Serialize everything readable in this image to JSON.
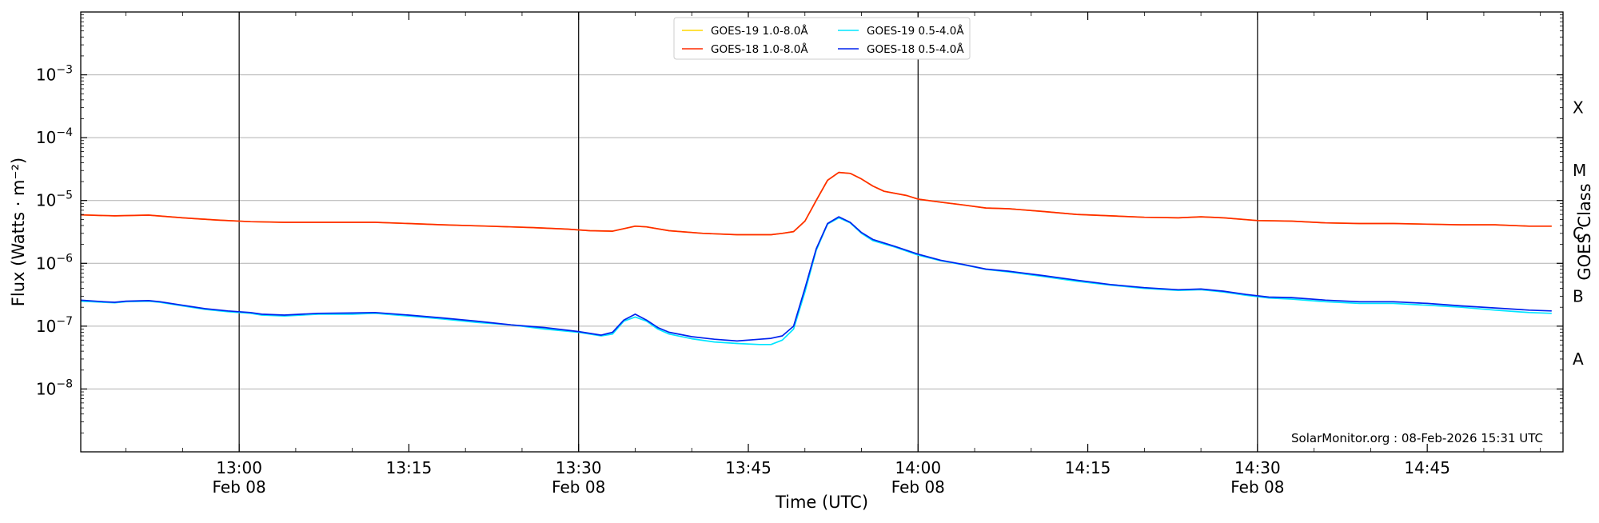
{
  "chart_data": {
    "type": "line",
    "title": "",
    "xlabel": "Time (UTC)",
    "ylabel": "Flux (Watts · m⁻²)",
    "right_label": "GOES Class",
    "yscale": "log",
    "ylim": [
      1e-09,
      0.01
    ],
    "xlim": [
      "12:46",
      "14:57"
    ],
    "grid": "horizontal at decades",
    "legend_position": "top-center",
    "y_ticks": [
      {
        "value": 1e-08,
        "base": "10",
        "exp": "−8"
      },
      {
        "value": 1e-07,
        "base": "10",
        "exp": "−7"
      },
      {
        "value": 1e-06,
        "base": "10",
        "exp": "−6"
      },
      {
        "value": 1e-05,
        "base": "10",
        "exp": "−5"
      },
      {
        "value": 0.0001,
        "base": "10",
        "exp": "−4"
      },
      {
        "value": 0.001,
        "base": "10",
        "exp": "−3"
      }
    ],
    "x_ticks": [
      {
        "time": "13:00",
        "label": "13:00",
        "date": "Feb 08"
      },
      {
        "time": "13:15",
        "label": "13:15",
        "date": ""
      },
      {
        "time": "13:30",
        "label": "13:30",
        "date": "Feb 08"
      },
      {
        "time": "13:45",
        "label": "13:45",
        "date": ""
      },
      {
        "time": "14:00",
        "label": "14:00",
        "date": "Feb 08"
      },
      {
        "time": "14:15",
        "label": "14:15",
        "date": ""
      },
      {
        "time": "14:30",
        "label": "14:30",
        "date": "Feb 08"
      },
      {
        "time": "14:45",
        "label": "14:45",
        "date": ""
      }
    ],
    "day_boundaries": [
      "13:00",
      "13:30",
      "14:00",
      "14:30"
    ],
    "goes_classes": [
      {
        "label": "A",
        "value": 3e-08
      },
      {
        "label": "B",
        "value": 3e-07
      },
      {
        "label": "C",
        "value": 3e-06
      },
      {
        "label": "M",
        "value": 3e-05
      },
      {
        "label": "X",
        "value": 0.0003
      }
    ],
    "series": [
      {
        "name": "GOES-19 1.0-8.0Å",
        "color": "#ffd700",
        "points": [
          [
            "12:46",
            5.9e-06
          ],
          [
            "12:49",
            5.7e-06
          ],
          [
            "12:52",
            5.85e-06
          ],
          [
            "12:55",
            5.3e-06
          ],
          [
            "12:58",
            4.9e-06
          ],
          [
            "13:01",
            4.6e-06
          ],
          [
            "13:04",
            4.5e-06
          ],
          [
            "13:08",
            4.5e-06
          ],
          [
            "13:12",
            4.5e-06
          ],
          [
            "13:15",
            4.3e-06
          ],
          [
            "13:18",
            4.1e-06
          ],
          [
            "13:22",
            3.9e-06
          ],
          [
            "13:26",
            3.7e-06
          ],
          [
            "13:29",
            3.5e-06
          ],
          [
            "13:31",
            3.3e-06
          ],
          [
            "13:33",
            3.25e-06
          ],
          [
            "13:35",
            3.9e-06
          ],
          [
            "13:36",
            3.8e-06
          ],
          [
            "13:38",
            3.3e-06
          ],
          [
            "13:41",
            3e-06
          ],
          [
            "13:44",
            2.85e-06
          ],
          [
            "13:47",
            2.85e-06
          ],
          [
            "13:48",
            3e-06
          ],
          [
            "13:49",
            3.2e-06
          ],
          [
            "13:50",
            4.7e-06
          ],
          [
            "13:51",
            1e-05
          ],
          [
            "13:52",
            2.1e-05
          ],
          [
            "13:53",
            2.8e-05
          ],
          [
            "13:54",
            2.7e-05
          ],
          [
            "13:55",
            2.2e-05
          ],
          [
            "13:56",
            1.7e-05
          ],
          [
            "13:57",
            1.4e-05
          ],
          [
            "13:59",
            1.2e-05
          ],
          [
            "14:00",
            1.05e-05
          ],
          [
            "14:02",
            9.4e-06
          ],
          [
            "14:04",
            8.5e-06
          ],
          [
            "14:06",
            7.6e-06
          ],
          [
            "14:08",
            7.4e-06
          ],
          [
            "14:11",
            6.7e-06
          ],
          [
            "14:14",
            6e-06
          ],
          [
            "14:17",
            5.7e-06
          ],
          [
            "14:20",
            5.4e-06
          ],
          [
            "14:23",
            5.3e-06
          ],
          [
            "14:25",
            5.5e-06
          ],
          [
            "14:27",
            5.3e-06
          ],
          [
            "14:30",
            4.8e-06
          ],
          [
            "14:33",
            4.7e-06
          ],
          [
            "14:36",
            4.4e-06
          ],
          [
            "14:39",
            4.3e-06
          ],
          [
            "14:42",
            4.3e-06
          ],
          [
            "14:45",
            4.2e-06
          ],
          [
            "14:48",
            4.1e-06
          ],
          [
            "14:51",
            4.1e-06
          ],
          [
            "14:54",
            3.9e-06
          ],
          [
            "14:56",
            3.9e-06
          ]
        ]
      },
      {
        "name": "GOES-18 1.0-8.0Å",
        "color": "#ff2a00",
        "points": [
          [
            "12:46",
            5.9e-06
          ],
          [
            "12:49",
            5.7e-06
          ],
          [
            "12:52",
            5.85e-06
          ],
          [
            "12:55",
            5.3e-06
          ],
          [
            "12:58",
            4.9e-06
          ],
          [
            "13:01",
            4.6e-06
          ],
          [
            "13:04",
            4.5e-06
          ],
          [
            "13:08",
            4.5e-06
          ],
          [
            "13:12",
            4.5e-06
          ],
          [
            "13:15",
            4.3e-06
          ],
          [
            "13:18",
            4.1e-06
          ],
          [
            "13:22",
            3.9e-06
          ],
          [
            "13:26",
            3.7e-06
          ],
          [
            "13:29",
            3.5e-06
          ],
          [
            "13:31",
            3.3e-06
          ],
          [
            "13:33",
            3.25e-06
          ],
          [
            "13:35",
            3.9e-06
          ],
          [
            "13:36",
            3.8e-06
          ],
          [
            "13:38",
            3.3e-06
          ],
          [
            "13:41",
            3e-06
          ],
          [
            "13:44",
            2.85e-06
          ],
          [
            "13:47",
            2.85e-06
          ],
          [
            "13:48",
            3e-06
          ],
          [
            "13:49",
            3.2e-06
          ],
          [
            "13:50",
            4.7e-06
          ],
          [
            "13:51",
            1e-05
          ],
          [
            "13:52",
            2.1e-05
          ],
          [
            "13:53",
            2.8e-05
          ],
          [
            "13:54",
            2.7e-05
          ],
          [
            "13:55",
            2.2e-05
          ],
          [
            "13:56",
            1.7e-05
          ],
          [
            "13:57",
            1.4e-05
          ],
          [
            "13:59",
            1.2e-05
          ],
          [
            "14:00",
            1.05e-05
          ],
          [
            "14:02",
            9.4e-06
          ],
          [
            "14:04",
            8.5e-06
          ],
          [
            "14:06",
            7.6e-06
          ],
          [
            "14:08",
            7.4e-06
          ],
          [
            "14:11",
            6.7e-06
          ],
          [
            "14:14",
            6e-06
          ],
          [
            "14:17",
            5.7e-06
          ],
          [
            "14:20",
            5.4e-06
          ],
          [
            "14:23",
            5.3e-06
          ],
          [
            "14:25",
            5.5e-06
          ],
          [
            "14:27",
            5.3e-06
          ],
          [
            "14:30",
            4.8e-06
          ],
          [
            "14:33",
            4.7e-06
          ],
          [
            "14:36",
            4.4e-06
          ],
          [
            "14:39",
            4.3e-06
          ],
          [
            "14:42",
            4.3e-06
          ],
          [
            "14:45",
            4.2e-06
          ],
          [
            "14:48",
            4.1e-06
          ],
          [
            "14:51",
            4.1e-06
          ],
          [
            "14:54",
            3.9e-06
          ],
          [
            "14:56",
            3.9e-06
          ]
        ]
      },
      {
        "name": "GOES-19 0.5-4.0Å",
        "color": "#00e5ff",
        "points": [
          [
            "12:46",
            2.5e-07
          ],
          [
            "12:48",
            2.4e-07
          ],
          [
            "12:49",
            2.35e-07
          ],
          [
            "12:50",
            2.45e-07
          ],
          [
            "12:52",
            2.5e-07
          ],
          [
            "12:53",
            2.4e-07
          ],
          [
            "12:55",
            2.1e-07
          ],
          [
            "12:57",
            1.85e-07
          ],
          [
            "12:59",
            1.7e-07
          ],
          [
            "13:01",
            1.6e-07
          ],
          [
            "13:02",
            1.5e-07
          ],
          [
            "13:04",
            1.45e-07
          ],
          [
            "13:07",
            1.55e-07
          ],
          [
            "13:10",
            1.55e-07
          ],
          [
            "13:12",
            1.6e-07
          ],
          [
            "13:15",
            1.45e-07
          ],
          [
            "13:18",
            1.3e-07
          ],
          [
            "13:21",
            1.15e-07
          ],
          [
            "13:24",
            1.05e-07
          ],
          [
            "13:27",
            9e-08
          ],
          [
            "13:30",
            8e-08
          ],
          [
            "13:32",
            7e-08
          ],
          [
            "13:33",
            7.5e-08
          ],
          [
            "13:34",
            1.2e-07
          ],
          [
            "13:35",
            1.4e-07
          ],
          [
            "13:36",
            1.2e-07
          ],
          [
            "13:37",
            9e-08
          ],
          [
            "13:38",
            7.5e-08
          ],
          [
            "13:40",
            6.3e-08
          ],
          [
            "13:42",
            5.6e-08
          ],
          [
            "13:44",
            5.3e-08
          ],
          [
            "13:46",
            5.1e-08
          ],
          [
            "13:47",
            5.1e-08
          ],
          [
            "13:48",
            6e-08
          ],
          [
            "13:49",
            9e-08
          ],
          [
            "13:50",
            3.5e-07
          ],
          [
            "13:51",
            1.6e-06
          ],
          [
            "13:52",
            4.2e-06
          ],
          [
            "13:53",
            5.3e-06
          ],
          [
            "13:54",
            4.4e-06
          ],
          [
            "13:55",
            3e-06
          ],
          [
            "13:56",
            2.3e-06
          ],
          [
            "13:58",
            1.8e-06
          ],
          [
            "14:00",
            1.35e-06
          ],
          [
            "14:02",
            1.1e-06
          ],
          [
            "14:04",
            9.5e-07
          ],
          [
            "14:06",
            8e-07
          ],
          [
            "14:08",
            7.3e-07
          ],
          [
            "14:11",
            6.2e-07
          ],
          [
            "14:14",
            5.2e-07
          ],
          [
            "14:17",
            4.5e-07
          ],
          [
            "14:20",
            4e-07
          ],
          [
            "14:23",
            3.7e-07
          ],
          [
            "14:25",
            3.8e-07
          ],
          [
            "14:27",
            3.5e-07
          ],
          [
            "14:29",
            3.1e-07
          ],
          [
            "14:31",
            2.8e-07
          ],
          [
            "14:33",
            2.7e-07
          ],
          [
            "14:36",
            2.45e-07
          ],
          [
            "14:39",
            2.3e-07
          ],
          [
            "14:42",
            2.3e-07
          ],
          [
            "14:45",
            2.15e-07
          ],
          [
            "14:48",
            2e-07
          ],
          [
            "14:51",
            1.8e-07
          ],
          [
            "14:54",
            1.65e-07
          ],
          [
            "14:56",
            1.6e-07
          ]
        ]
      },
      {
        "name": "GOES-18 0.5-4.0Å",
        "color": "#0022ee",
        "points": [
          [
            "12:46",
            2.6e-07
          ],
          [
            "12:48",
            2.45e-07
          ],
          [
            "12:49",
            2.4e-07
          ],
          [
            "12:50",
            2.5e-07
          ],
          [
            "12:52",
            2.55e-07
          ],
          [
            "12:53",
            2.45e-07
          ],
          [
            "12:55",
            2.15e-07
          ],
          [
            "12:57",
            1.9e-07
          ],
          [
            "12:59",
            1.75e-07
          ],
          [
            "13:01",
            1.65e-07
          ],
          [
            "13:02",
            1.55e-07
          ],
          [
            "13:04",
            1.5e-07
          ],
          [
            "13:07",
            1.6e-07
          ],
          [
            "13:10",
            1.62e-07
          ],
          [
            "13:12",
            1.65e-07
          ],
          [
            "13:15",
            1.5e-07
          ],
          [
            "13:18",
            1.35e-07
          ],
          [
            "13:21",
            1.2e-07
          ],
          [
            "13:24",
            1.05e-07
          ],
          [
            "13:27",
            9.5e-08
          ],
          [
            "13:30",
            8.2e-08
          ],
          [
            "13:32",
            7.2e-08
          ],
          [
            "13:33",
            8e-08
          ],
          [
            "13:34",
            1.25e-07
          ],
          [
            "13:35",
            1.55e-07
          ],
          [
            "13:36",
            1.25e-07
          ],
          [
            "13:37",
            9.5e-08
          ],
          [
            "13:38",
            8e-08
          ],
          [
            "13:40",
            6.8e-08
          ],
          [
            "13:42",
            6.2e-08
          ],
          [
            "13:44",
            5.8e-08
          ],
          [
            "13:46",
            6.2e-08
          ],
          [
            "13:47",
            6.4e-08
          ],
          [
            "13:48",
            7e-08
          ],
          [
            "13:49",
            1e-07
          ],
          [
            "13:50",
            4e-07
          ],
          [
            "13:51",
            1.7e-06
          ],
          [
            "13:52",
            4.3e-06
          ],
          [
            "13:53",
            5.5e-06
          ],
          [
            "13:54",
            4.5e-06
          ],
          [
            "13:55",
            3.1e-06
          ],
          [
            "13:56",
            2.4e-06
          ],
          [
            "13:58",
            1.85e-06
          ],
          [
            "14:00",
            1.4e-06
          ],
          [
            "14:02",
            1.12e-06
          ],
          [
            "14:04",
            9.6e-07
          ],
          [
            "14:06",
            8.1e-07
          ],
          [
            "14:08",
            7.5e-07
          ],
          [
            "14:11",
            6.4e-07
          ],
          [
            "14:14",
            5.4e-07
          ],
          [
            "14:17",
            4.6e-07
          ],
          [
            "14:20",
            4.1e-07
          ],
          [
            "14:23",
            3.8e-07
          ],
          [
            "14:25",
            3.9e-07
          ],
          [
            "14:27",
            3.6e-07
          ],
          [
            "14:29",
            3.2e-07
          ],
          [
            "14:31",
            2.9e-07
          ],
          [
            "14:33",
            2.85e-07
          ],
          [
            "14:36",
            2.6e-07
          ],
          [
            "14:39",
            2.45e-07
          ],
          [
            "14:42",
            2.45e-07
          ],
          [
            "14:45",
            2.3e-07
          ],
          [
            "14:48",
            2.1e-07
          ],
          [
            "14:51",
            1.95e-07
          ],
          [
            "14:54",
            1.8e-07
          ],
          [
            "14:56",
            1.75e-07
          ]
        ]
      }
    ],
    "legend": [
      {
        "label": "GOES-19 1.0-8.0Å",
        "color": "#ffd700"
      },
      {
        "label": "GOES-19 0.5-4.0Å",
        "color": "#00e5ff"
      },
      {
        "label": "GOES-18 1.0-8.0Å",
        "color": "#ff2a00"
      },
      {
        "label": "GOES-18 0.5-4.0Å",
        "color": "#0022ee"
      }
    ],
    "annotation": "SolarMonitor.org : 08-Feb-2026 15:31 UTC"
  }
}
